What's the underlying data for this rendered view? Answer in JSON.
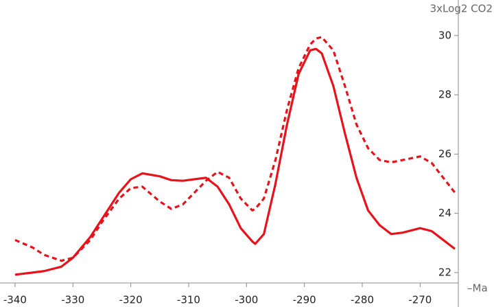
{
  "chart_data": {
    "type": "line",
    "x_label": "–Ma",
    "y_label": "3xLog2 CO2",
    "x": [
      -340,
      -337,
      -335,
      -332,
      -330,
      -327,
      -325,
      -322,
      -320,
      -318,
      -315,
      -313,
      -311,
      -309,
      -307,
      -305,
      -303,
      -301,
      -299,
      -298.5,
      -297,
      -295,
      -293,
      -291,
      -289,
      -288,
      -287,
      -285,
      -283,
      -281,
      -279,
      -277,
      -275,
      -273,
      -270,
      -268,
      -266,
      -264
    ],
    "series": [
      {
        "color": "#e8121b",
        "style": "solid",
        "values": [
          21.93,
          22.0,
          22.05,
          22.2,
          22.5,
          23.2,
          23.8,
          24.7,
          25.15,
          25.35,
          25.25,
          25.12,
          25.1,
          25.15,
          25.2,
          24.9,
          24.3,
          23.5,
          23.05,
          22.97,
          23.3,
          25.0,
          27.0,
          28.7,
          29.5,
          29.55,
          29.4,
          28.3,
          26.7,
          25.2,
          24.1,
          23.6,
          23.3,
          23.35,
          23.5,
          23.4,
          23.1,
          22.8
        ]
      },
      {
        "color": "#e8121b",
        "style": "dashed",
        "values": [
          23.1,
          22.85,
          22.6,
          22.4,
          22.5,
          23.1,
          23.7,
          24.5,
          24.85,
          24.9,
          24.4,
          24.15,
          24.3,
          24.7,
          25.1,
          25.4,
          25.2,
          24.5,
          24.1,
          24.15,
          24.5,
          25.8,
          27.5,
          28.9,
          29.7,
          29.9,
          29.95,
          29.5,
          28.3,
          27.0,
          26.2,
          25.8,
          25.72,
          25.8,
          25.92,
          25.7,
          25.2,
          24.7
        ]
      }
    ],
    "xlim": [
      -342.6,
      -263.4
    ],
    "ylim": [
      21.65,
      31.2
    ],
    "xticks": [
      -340,
      -330,
      -320,
      -310,
      -300,
      -290,
      -280,
      -270
    ],
    "yticks": [
      22,
      24,
      26,
      28,
      30
    ]
  }
}
